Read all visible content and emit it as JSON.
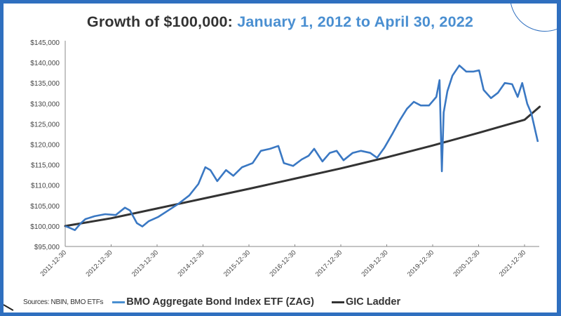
{
  "title": {
    "prefix": "Growth of $100,000:",
    "period": "January 1, 2012 to April 30, 2022"
  },
  "footer": {
    "sources": "Sources: NBIN, BMO ETFs"
  },
  "legend": [
    {
      "label": "BMO Aggregate Bond Index ETF (ZAG)",
      "color": "#3a78c3"
    },
    {
      "label": "GIC Ladder",
      "color": "#333333"
    }
  ],
  "colors": {
    "frame": "#2f6fbf",
    "title_prefix": "#333333",
    "title_period": "#4a8fd1",
    "zag": "#3a78c3",
    "gic": "#333333"
  },
  "chart_data": {
    "type": "line",
    "title": "Growth of $100,000: January 1, 2012 to April 30, 2022",
    "xlabel": "",
    "ylabel": "",
    "ylim": [
      95000,
      145000
    ],
    "y_ticks": [
      "$95,000",
      "$100,000",
      "$105,000",
      "$110,000",
      "$115,000",
      "$120,000",
      "$125,000",
      "$130,000",
      "$135,000",
      "$140,000",
      "$145,000"
    ],
    "x_ticks": [
      "2011-12-30",
      "2012-12-30",
      "2013-12-30",
      "2014-12-30",
      "2015-12-30",
      "2016-12-30",
      "2017-12-30",
      "2018-12-30",
      "2019-12-30",
      "2020-12-30",
      "2021-12-30"
    ],
    "grid": false,
    "legend_position": "bottom",
    "source": "Sources: NBIN, BMO ETFs",
    "series": [
      {
        "name": "BMO Aggregate Bond Index ETF (ZAG)",
        "color": "#3a78c3",
        "x_years": [
          0.0,
          0.11,
          0.21,
          0.34,
          0.44,
          0.64,
          0.87,
          1.1,
          1.3,
          1.41,
          1.56,
          1.68,
          1.82,
          2.02,
          2.24,
          2.47,
          2.7,
          2.9,
          3.05,
          3.16,
          3.31,
          3.5,
          3.66,
          3.85,
          4.08,
          4.26,
          4.46,
          4.64,
          4.76,
          4.96,
          5.15,
          5.3,
          5.42,
          5.6,
          5.76,
          5.91,
          6.06,
          6.26,
          6.44,
          6.64,
          6.79,
          6.95,
          7.13,
          7.28,
          7.44,
          7.59,
          7.74,
          7.92,
          8.08,
          8.15,
          8.2,
          8.24,
          8.32,
          8.43,
          8.58,
          8.73,
          8.89,
          9.01,
          9.11,
          9.27,
          9.42,
          9.57,
          9.73,
          9.85,
          9.95,
          10.06,
          10.15,
          10.23,
          10.29
        ],
        "values": [
          100000,
          99500,
          99000,
          100700,
          101700,
          102400,
          102900,
          102700,
          104500,
          103800,
          100700,
          99900,
          101200,
          102200,
          103800,
          105500,
          107500,
          110300,
          114400,
          113700,
          111000,
          113700,
          112300,
          114400,
          115400,
          118400,
          118900,
          119600,
          115400,
          114700,
          116300,
          117200,
          118900,
          115800,
          117900,
          118400,
          116100,
          117900,
          118400,
          117900,
          116700,
          119200,
          122700,
          125800,
          128700,
          130400,
          129500,
          129500,
          131600,
          135700,
          113400,
          127800,
          133000,
          136800,
          139300,
          137800,
          137800,
          138100,
          133300,
          131300,
          132600,
          135000,
          134700,
          131600,
          135000,
          129900,
          127500,
          123500,
          120600
        ]
      },
      {
        "name": "GIC Ladder",
        "color": "#333333",
        "x_years": [
          0,
          1,
          2,
          3,
          4,
          5,
          6,
          7,
          8,
          9,
          10,
          10.33
        ],
        "values": [
          100000,
          101900,
          104300,
          106700,
          109100,
          111600,
          114100,
          116800,
          119700,
          122800,
          126000,
          129200
        ]
      }
    ]
  }
}
